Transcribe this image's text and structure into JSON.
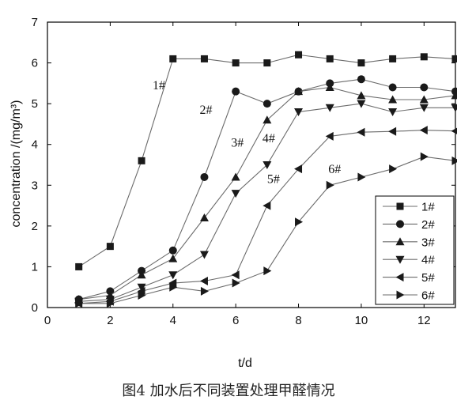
{
  "chart_data": {
    "type": "line",
    "xlabel": "t/d",
    "ylabel": "concentration /(mg/m³)",
    "xlim": [
      0,
      13
    ],
    "ylim": [
      0,
      7
    ],
    "x_ticks": [
      0,
      2,
      4,
      6,
      8,
      10,
      12
    ],
    "y_ticks": [
      0,
      1,
      2,
      3,
      4,
      5,
      6,
      7
    ],
    "grid": false,
    "legend_position": "right",
    "series": [
      {
        "name": "1#",
        "marker": "square",
        "x": [
          1,
          2,
          3,
          4,
          5,
          6,
          7,
          8,
          9,
          10,
          11,
          12,
          13
        ],
        "y": [
          1.0,
          1.5,
          3.6,
          6.1,
          6.1,
          6.0,
          6.0,
          6.2,
          6.1,
          6.0,
          6.1,
          6.15,
          6.1
        ]
      },
      {
        "name": "2#",
        "marker": "circle",
        "x": [
          1,
          2,
          3,
          4,
          5,
          6,
          7,
          8,
          9,
          10,
          11,
          12,
          13
        ],
        "y": [
          0.2,
          0.4,
          0.9,
          1.4,
          3.2,
          5.3,
          5.0,
          5.3,
          5.5,
          5.6,
          5.4,
          5.4,
          5.3
        ]
      },
      {
        "name": "3#",
        "marker": "triangle-up",
        "x": [
          1,
          2,
          3,
          4,
          5,
          6,
          7,
          8,
          9,
          10,
          11,
          12,
          13
        ],
        "y": [
          0.2,
          0.3,
          0.8,
          1.2,
          2.2,
          3.2,
          4.6,
          5.3,
          5.4,
          5.2,
          5.1,
          5.1,
          5.2
        ]
      },
      {
        "name": "4#",
        "marker": "triangle-down",
        "x": [
          1,
          2,
          3,
          4,
          5,
          6,
          7,
          8,
          9,
          10,
          11,
          12,
          13
        ],
        "y": [
          0.15,
          0.2,
          0.5,
          0.8,
          1.3,
          2.8,
          3.5,
          4.8,
          4.9,
          5.0,
          4.8,
          4.9,
          4.9
        ]
      },
      {
        "name": "5#",
        "marker": "triangle-left",
        "x": [
          1,
          2,
          3,
          4,
          5,
          6,
          7,
          8,
          9,
          10,
          11,
          12,
          13
        ],
        "y": [
          0.1,
          0.15,
          0.4,
          0.6,
          0.65,
          0.8,
          2.5,
          3.4,
          4.2,
          4.3,
          4.32,
          4.35,
          4.33
        ]
      },
      {
        "name": "6#",
        "marker": "triangle-right",
        "x": [
          1,
          2,
          3,
          4,
          5,
          6,
          7,
          8,
          9,
          10,
          11,
          12,
          13
        ],
        "y": [
          0.1,
          0.1,
          0.3,
          0.5,
          0.4,
          0.6,
          0.9,
          2.1,
          3.0,
          3.2,
          3.4,
          3.7,
          3.6
        ]
      }
    ],
    "annotations": [
      {
        "text": "1#",
        "x": 3.35,
        "y": 5.35
      },
      {
        "text": "2#",
        "x": 4.85,
        "y": 4.75
      },
      {
        "text": "3#",
        "x": 5.85,
        "y": 3.95
      },
      {
        "text": "4#",
        "x": 6.85,
        "y": 4.05
      },
      {
        "text": "5#",
        "x": 7.0,
        "y": 3.05
      },
      {
        "text": "6#",
        "x": 8.95,
        "y": 3.3
      }
    ],
    "caption": "图4   加水后不同装置处理甲醛情况"
  },
  "colors": {
    "line": "#6b6b6b",
    "marker": "#1a1a1a",
    "axis": "#000000"
  }
}
